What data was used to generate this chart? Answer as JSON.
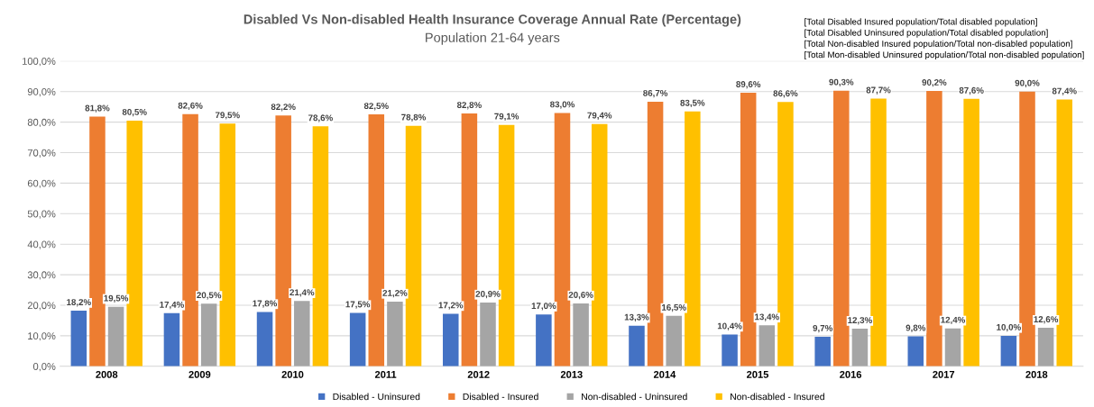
{
  "chart_data": {
    "type": "bar",
    "title": "Disabled Vs Non-disabled Health Insurance Coverage Annual Rate (Percentage)",
    "subtitle": "Population 21-64 years",
    "annotations": [
      "[Total Disabled Insured population/Total disabled population]\n[Total Disabled Uninsured population/Total disabled population]\n[Total Non-disabled Insured population/Total non-disabled population]\n[Total Mon-disabled Uninsured population/Total non-disabled population]"
    ],
    "categories": [
      "2008",
      "2009",
      "2010",
      "2011",
      "2012",
      "2013",
      "2014",
      "2015",
      "2016",
      "2017",
      "2018"
    ],
    "series": [
      {
        "name": "Disabled - Uninsured",
        "color": "#4472c4",
        "values": [
          18.2,
          17.4,
          17.8,
          17.5,
          17.2,
          17.0,
          13.3,
          10.4,
          9.7,
          9.8,
          10.0
        ],
        "value_labels": [
          "18,2%",
          "17,4%",
          "17,8%",
          "17,5%",
          "17,2%",
          "17,0%",
          "13,3%",
          "10,4%",
          "9,7%",
          "9,8%",
          "10,0%"
        ]
      },
      {
        "name": "Disabled - Insured",
        "color": "#ed7d31",
        "values": [
          81.8,
          82.6,
          82.2,
          82.5,
          82.8,
          83.0,
          86.7,
          89.6,
          90.3,
          90.2,
          90.0
        ],
        "value_labels": [
          "81,8%",
          "82,6%",
          "82,2%",
          "82,5%",
          "82,8%",
          "83,0%",
          "86,7%",
          "89,6%",
          "90,3%",
          "90,2%",
          "90,0%"
        ]
      },
      {
        "name": "Non-disabled - Uninsured",
        "color": "#a5a5a5",
        "values": [
          19.5,
          20.5,
          21.4,
          21.2,
          20.9,
          20.6,
          16.5,
          13.4,
          12.3,
          12.4,
          12.6
        ],
        "value_labels": [
          "19,5%",
          "20,5%",
          "21,4%",
          "21,2%",
          "20,9%",
          "20,6%",
          "16,5%",
          "13,4%",
          "12,3%",
          "12,4%",
          "12,6%"
        ]
      },
      {
        "name": "Non-disabled - Insured",
        "color": "#ffc000",
        "values": [
          80.5,
          79.5,
          78.6,
          78.8,
          79.1,
          79.4,
          83.5,
          86.6,
          87.7,
          87.6,
          87.4
        ],
        "value_labels": [
          "80,5%",
          "79,5%",
          "78,6%",
          "78,8%",
          "79,1%",
          "79,4%",
          "83,5%",
          "86,6%",
          "87,7%",
          "87,6%",
          "87,4%"
        ]
      }
    ],
    "ylim": [
      0,
      100
    ],
    "yticks": [
      {
        "value": 0,
        "label": "0,0%"
      },
      {
        "value": 10,
        "label": "10,0%"
      },
      {
        "value": 20,
        "label": "20,0%"
      },
      {
        "value": 30,
        "label": "30,0%"
      },
      {
        "value": 40,
        "label": "40,0%"
      },
      {
        "value": 50,
        "label": "50,0%"
      },
      {
        "value": 60,
        "label": "60,0%"
      },
      {
        "value": 70,
        "label": "70,0%"
      },
      {
        "value": 80,
        "label": "80,0%"
      },
      {
        "value": 90,
        "label": "90,0%"
      },
      {
        "value": 100,
        "label": "100,0%"
      }
    ],
    "grid": "y",
    "legend": "bottom"
  }
}
